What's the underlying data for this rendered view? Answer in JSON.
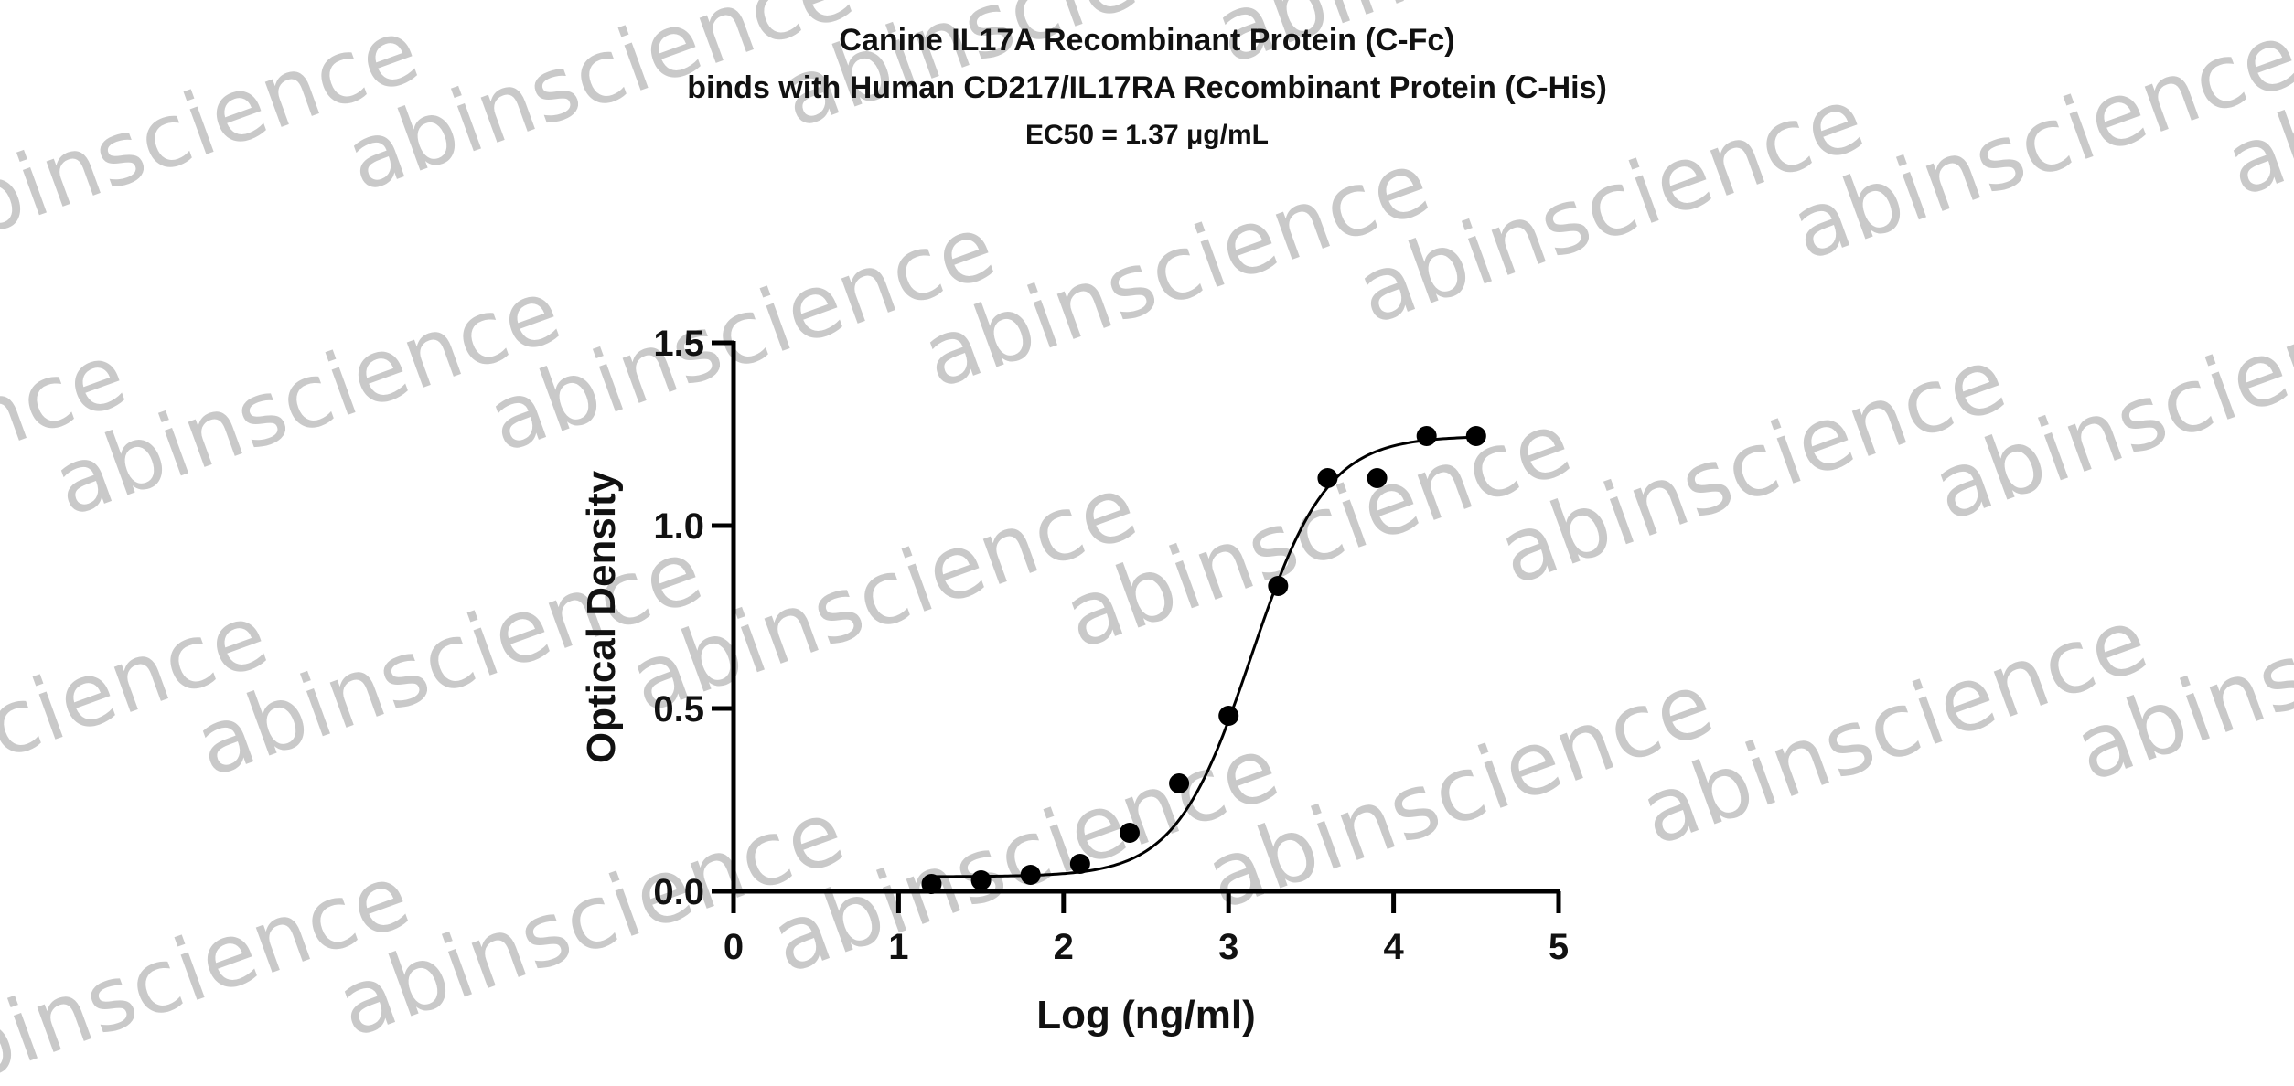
{
  "chart_data": {
    "type": "scatter",
    "title": "Canine IL17A Recombinant Protein (C-Fc)",
    "title_line2": "binds with Human CD217/IL17RA Recombinant Protein (C-His)",
    "subtitle": "EC50 = 1.37 μg/mL",
    "xlabel": "Log (ng/ml)",
    "ylabel": "Optical Density",
    "xlim": [
      0,
      5
    ],
    "ylim": [
      0,
      1.5
    ],
    "xticks": [
      {
        "value": 0,
        "label": "0"
      },
      {
        "value": 1,
        "label": "1"
      },
      {
        "value": 2,
        "label": "2"
      },
      {
        "value": 3,
        "label": "3"
      },
      {
        "value": 4,
        "label": "4"
      },
      {
        "value": 5,
        "label": "5"
      }
    ],
    "yticks": [
      {
        "value": 0,
        "label": "0.0"
      },
      {
        "value": 0.5,
        "label": "0.5"
      },
      {
        "value": 1.0,
        "label": "1.0"
      },
      {
        "value": 1.5,
        "label": "1.5"
      }
    ],
    "grid": false,
    "series": [
      {
        "points": [
          {
            "x": 1.2,
            "y": 0.02
          },
          {
            "x": 1.5,
            "y": 0.03
          },
          {
            "x": 1.8,
            "y": 0.045
          },
          {
            "x": 2.1,
            "y": 0.075
          },
          {
            "x": 2.4,
            "y": 0.16
          },
          {
            "x": 2.7,
            "y": 0.295
          },
          {
            "x": 3.0,
            "y": 0.48
          },
          {
            "x": 3.3,
            "y": 0.835
          },
          {
            "x": 3.6,
            "y": 1.13
          },
          {
            "x": 3.9,
            "y": 1.13
          },
          {
            "x": 4.2,
            "y": 1.245
          },
          {
            "x": 4.5,
            "y": 1.245
          }
        ],
        "fit": {
          "model": "4PL",
          "bottom": 0.04,
          "top": 1.245,
          "logEC50": 3.137,
          "hill": 1.9,
          "x_range": [
            1.2,
            4.5
          ]
        },
        "color": "#000000"
      }
    ],
    "watermark": "abinscience"
  }
}
